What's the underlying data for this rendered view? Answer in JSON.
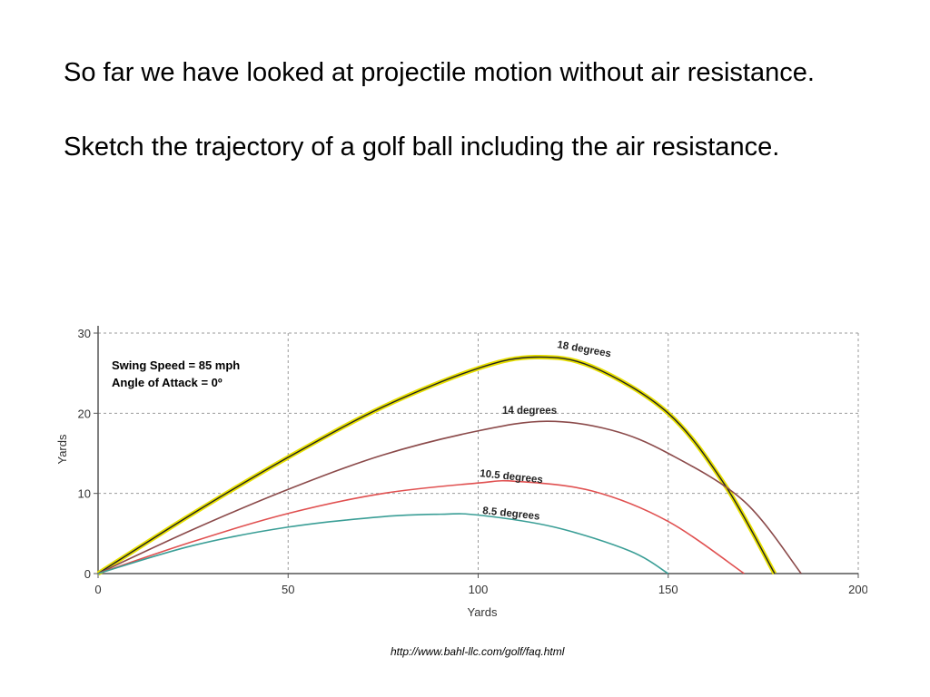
{
  "slide": {
    "paragraph1": "So far we have looked at projectile motion without air resistance.",
    "paragraph2": "Sketch the trajectory of a golf ball including the air resistance.",
    "source_url": "http://www.bahl-llc.com/golf/faq.html"
  },
  "chart_data": {
    "type": "line",
    "title": "",
    "xlabel": "Yards",
    "ylabel": "Yards",
    "xlim": [
      0,
      200
    ],
    "ylim": [
      0,
      30
    ],
    "x_ticks": [
      0,
      50,
      100,
      150,
      200
    ],
    "y_ticks": [
      0,
      10,
      20,
      30
    ],
    "grid": true,
    "annotations": [
      "Swing Speed = 85 mph",
      "Angle of Attack = 0º"
    ],
    "series": [
      {
        "name": "18 degrees",
        "color": "#e8e000",
        "highlight": true,
        "x": [
          0,
          25,
          50,
          75,
          100,
          115,
          130,
          150,
          165,
          178
        ],
        "y": [
          0,
          7.5,
          14.5,
          20.8,
          25.6,
          27,
          25.8,
          20,
          11,
          0
        ]
      },
      {
        "name": "14 degrees",
        "color": "#8b4a4a",
        "x": [
          0,
          25,
          50,
          75,
          100,
          118,
          135,
          150,
          170,
          185
        ],
        "y": [
          0,
          5.5,
          10.5,
          14.8,
          17.8,
          19,
          17.9,
          15,
          9,
          0
        ]
      },
      {
        "name": "10.5 degrees",
        "color": "#e05050",
        "x": [
          0,
          25,
          50,
          75,
          100,
          110,
          130,
          150,
          170
        ],
        "y": [
          0,
          4,
          7.5,
          10,
          11.3,
          11.5,
          10.3,
          6.5,
          0
        ]
      },
      {
        "name": "8.5 degrees",
        "color": "#3a9e96",
        "x": [
          0,
          25,
          50,
          75,
          90,
          100,
          120,
          140,
          150
        ],
        "y": [
          0,
          3.5,
          5.8,
          7.1,
          7.4,
          7.3,
          5.8,
          2.8,
          0
        ]
      }
    ]
  }
}
